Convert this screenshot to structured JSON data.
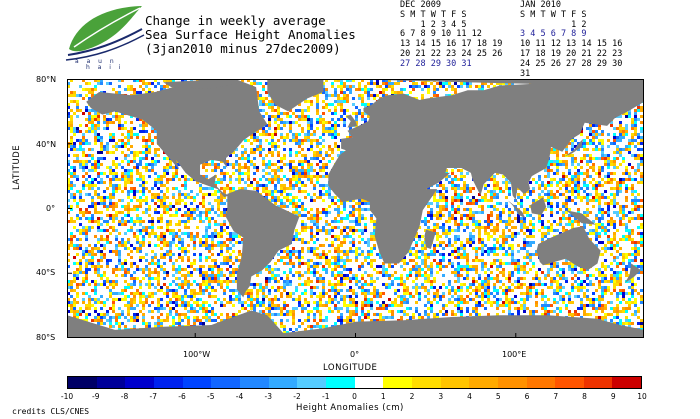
{
  "logo": {
    "line1": "a a u n",
    "line2": "h a i i"
  },
  "title": {
    "line1": "Change in weekly average",
    "line2": "Sea Surface Height Anomalies",
    "line3": "(3jan2010 minus 27dec2009)"
  },
  "calendars": [
    {
      "month": "DEC 2009",
      "days_header": "S M T W T F S",
      "rows": [
        {
          "text": "    1 2 3 4 5",
          "hl": false
        },
        {
          "text": "6 7 8 9 10 11 12",
          "hl": false
        },
        {
          "text": "13 14 15 16 17 18 19",
          "hl": false
        },
        {
          "text": "20 21 22 23 24 25 26",
          "hl": false
        },
        {
          "text": "27 28 29 30 31",
          "hl": true
        }
      ]
    },
    {
      "month": "JAN 2010",
      "days_header": "S M T W T F S",
      "rows": [
        {
          "text": "          1 2",
          "hl": false
        },
        {
          "text": "3 4 5 6 7 8 9",
          "hl": true
        },
        {
          "text": "10 11 12 13 14 15 16",
          "hl": false
        },
        {
          "text": "17 18 19 20 21 22 23",
          "hl": false
        },
        {
          "text": "24 25 26 27 28 29 30",
          "hl": false
        },
        {
          "text": "31",
          "hl": false
        }
      ]
    }
  ],
  "axes": {
    "ytitle": "LATITUDE",
    "xtitle": "LONGITUDE",
    "yticks": [
      "80°N",
      "40°N",
      "0°",
      "40°S",
      "80°S"
    ],
    "xticks": [
      "100°W",
      "0°",
      "100°E"
    ]
  },
  "colorbar": {
    "title": "Height Anomalies (cm)",
    "colors": [
      "#000066",
      "#000099",
      "#0000cc",
      "#0022ee",
      "#0044ff",
      "#1166ff",
      "#2288ff",
      "#33aaff",
      "#55ccff",
      "#00ffff",
      "#ffffff",
      "#ffff00",
      "#ffdd00",
      "#ffc400",
      "#ffaa00",
      "#ff9100",
      "#ff7700",
      "#ff5500",
      "#ee3300",
      "#cc0000"
    ],
    "ticks": [
      "-10",
      "-9",
      "-8",
      "-7",
      "-6",
      "-5",
      "-4",
      "-3",
      "-2",
      "-1",
      "0",
      "1",
      "2",
      "3",
      "4",
      "5",
      "6",
      "7",
      "8",
      "9",
      "10"
    ]
  },
  "credits": "credits CLS/CNES",
  "map": {
    "land_color": "#7f7f7f",
    "ocean_base": "#ffffff"
  }
}
